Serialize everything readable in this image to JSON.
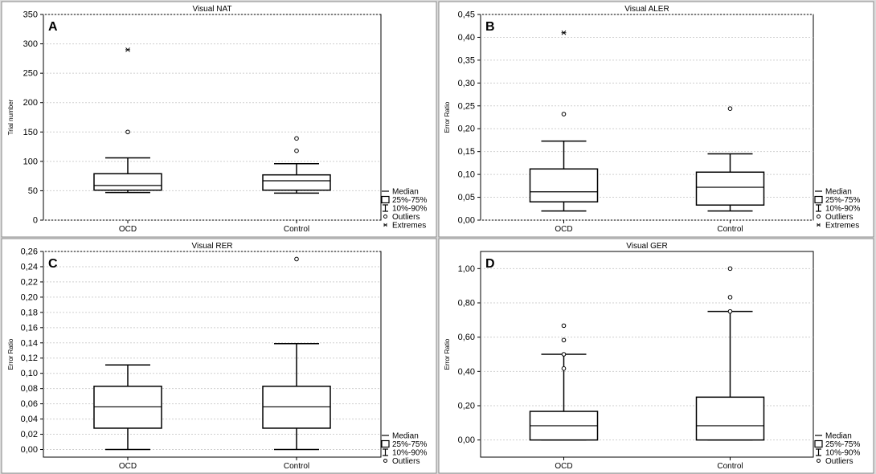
{
  "chart_data": [
    {
      "type": "boxplot",
      "panel_letter": "A",
      "title": "Visual NAT",
      "ylabel": "Trial number",
      "xlabel": "",
      "ylim": [
        0,
        350
      ],
      "yticks": [
        0,
        50,
        100,
        150,
        200,
        250,
        300,
        350
      ],
      "ytick_labels": [
        "0",
        "50",
        "100",
        "150",
        "200",
        "250",
        "300",
        "350"
      ],
      "grid": true,
      "categories": [
        "OCD",
        "Control"
      ],
      "boxes": [
        {
          "name": "OCD",
          "p10": 47,
          "q1": 51,
          "median": 59,
          "q3": 79,
          "p90": 106,
          "outliers": [
            150
          ],
          "extremes": [
            290
          ]
        },
        {
          "name": "Control",
          "p10": 46,
          "q1": 51,
          "median": 67,
          "q3": 77,
          "p90": 96,
          "outliers": [
            118,
            139
          ],
          "extremes": []
        }
      ],
      "legend": {
        "position": "right-bottom",
        "items": [
          "Median",
          "25%-75%",
          "10%-90%",
          "Outliers",
          "Extremes"
        ]
      }
    },
    {
      "type": "boxplot",
      "panel_letter": "B",
      "title": "Visual ALER",
      "ylabel": "Error Ratio",
      "xlabel": "",
      "ylim": [
        0,
        0.45
      ],
      "yticks": [
        0,
        0.05,
        0.1,
        0.15,
        0.2,
        0.25,
        0.3,
        0.35,
        0.4,
        0.45
      ],
      "ytick_labels": [
        "0,00",
        "0,05",
        "0,10",
        "0,15",
        "0,20",
        "0,25",
        "0,30",
        "0,35",
        "0,40",
        "0,45"
      ],
      "grid": true,
      "categories": [
        "OCD",
        "Control"
      ],
      "boxes": [
        {
          "name": "OCD",
          "p10": 0.02,
          "q1": 0.04,
          "median": 0.062,
          "q3": 0.112,
          "p90": 0.173,
          "outliers": [
            0.232
          ],
          "extremes": [
            0.41
          ]
        },
        {
          "name": "Control",
          "p10": 0.02,
          "q1": 0.033,
          "median": 0.072,
          "q3": 0.105,
          "p90": 0.145,
          "outliers": [
            0.244
          ],
          "extremes": []
        }
      ],
      "legend": {
        "position": "right-bottom",
        "items": [
          "Median",
          "25%-75%",
          "10%-90%",
          "Outliers",
          "Extremes"
        ]
      }
    },
    {
      "type": "boxplot",
      "panel_letter": "C",
      "title": "Visual RER",
      "ylabel": "Error Ratio",
      "xlabel": "",
      "ylim": [
        -0.01,
        0.26
      ],
      "yticks": [
        0,
        0.02,
        0.04,
        0.06,
        0.08,
        0.1,
        0.12,
        0.14,
        0.16,
        0.18,
        0.2,
        0.22,
        0.24,
        0.26
      ],
      "ytick_labels": [
        "0,00",
        "0,02",
        "0,04",
        "0,06",
        "0,08",
        "0,10",
        "0,12",
        "0,14",
        "0,16",
        "0,18",
        "0,20",
        "0,22",
        "0,24",
        "0,26"
      ],
      "grid": true,
      "categories": [
        "OCD",
        "Control"
      ],
      "boxes": [
        {
          "name": "OCD",
          "p10": 0.0,
          "q1": 0.028,
          "median": 0.056,
          "q3": 0.083,
          "p90": 0.111,
          "outliers": [],
          "extremes": []
        },
        {
          "name": "Control",
          "p10": 0.0,
          "q1": 0.028,
          "median": 0.056,
          "q3": 0.083,
          "p90": 0.139,
          "outliers": [
            0.25
          ],
          "extremes": []
        }
      ],
      "legend": {
        "position": "right-bottom",
        "items": [
          "Median",
          "25%-75%",
          "10%-90%",
          "Outliers"
        ]
      }
    },
    {
      "type": "boxplot",
      "panel_letter": "D",
      "title": "Visual GER",
      "ylabel": "Error Ratio",
      "xlabel": "",
      "ylim": [
        -0.1,
        1.1
      ],
      "yticks": [
        0,
        0.2,
        0.4,
        0.6,
        0.8,
        1.0
      ],
      "ytick_labels": [
        "0,00",
        "0,20",
        "0,40",
        "0,60",
        "0,80",
        "1,00"
      ],
      "grid": true,
      "categories": [
        "OCD",
        "Control"
      ],
      "boxes": [
        {
          "name": "OCD",
          "p10": 0.0,
          "q1": 0.0,
          "median": 0.083,
          "q3": 0.167,
          "p90": 0.5,
          "outliers": [
            0.5,
            0.583,
            0.667,
            0.417
          ],
          "extremes": []
        },
        {
          "name": "Control",
          "p10": 0.0,
          "q1": 0.0,
          "median": 0.083,
          "q3": 0.25,
          "p90": 0.75,
          "outliers": [
            0.75,
            0.833,
            1.0
          ],
          "extremes": []
        }
      ],
      "legend": {
        "position": "right-bottom",
        "items": [
          "Median",
          "25%-75%",
          "10%-90%",
          "Outliers"
        ]
      }
    }
  ]
}
